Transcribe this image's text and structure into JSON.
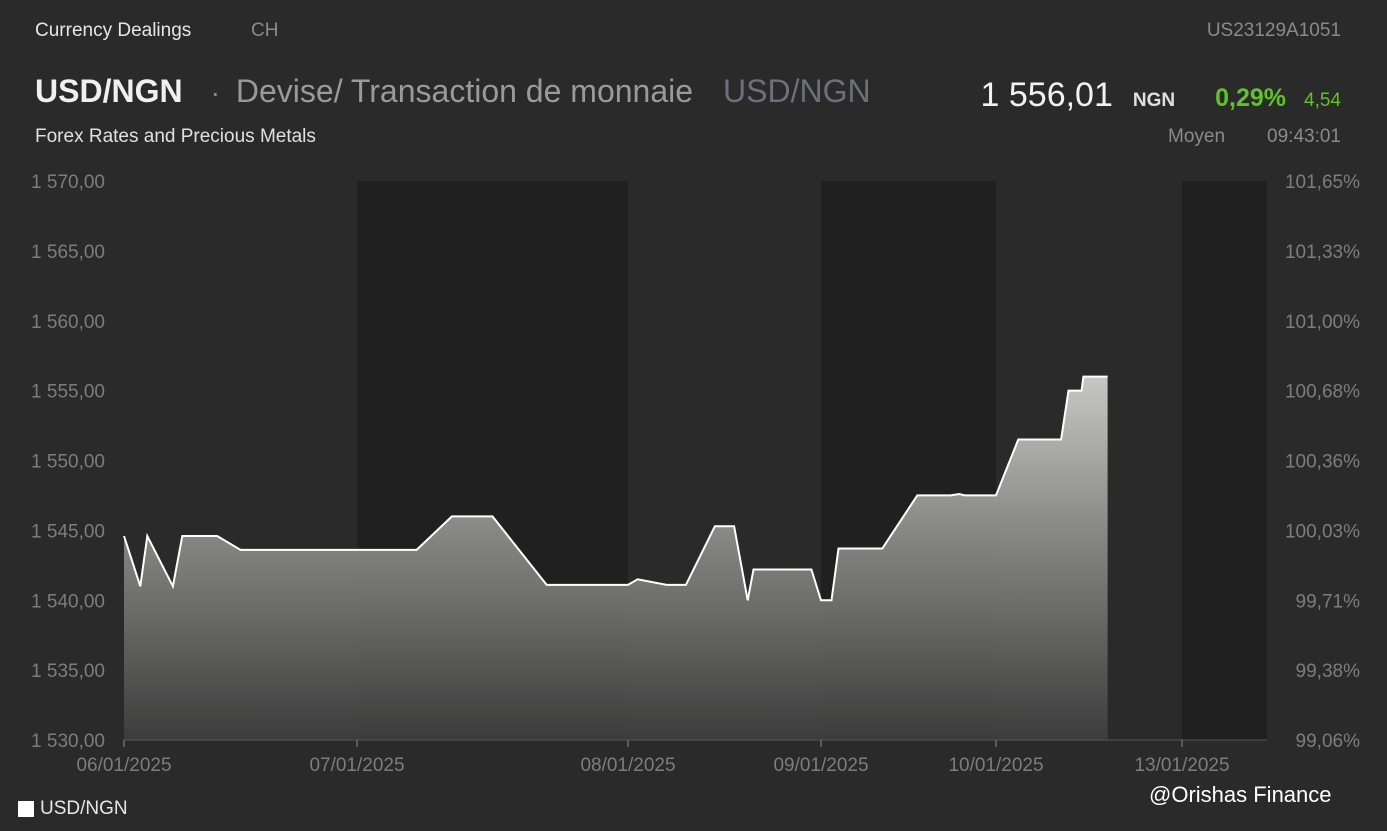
{
  "header": {
    "category": "Currency Dealings",
    "exchange": "CH",
    "isin": "US23129A1051",
    "symbol": "USD/NGN",
    "separator": "·",
    "description": "Devise/ Transaction de monnaie",
    "symbol_secondary": "USD/NGN",
    "price": "1 556,01",
    "currency": "NGN",
    "change_pct": "0,29%",
    "change_abs": "4,54",
    "subtitle": "Forex Rates and Precious Metals",
    "price_type": "Moyen",
    "time": "09:43:01"
  },
  "colors": {
    "background": "#2a2a2a",
    "shaded_band": "#202020",
    "line": "#ffffff",
    "positive": "#5fc22a"
  },
  "legend": {
    "label": "USD/NGN"
  },
  "watermark": "@Orishas Finance",
  "chart_data": {
    "type": "area",
    "series": [
      {
        "name": "USD/NGN",
        "x": [
          0,
          0.1,
          0.25,
          0.4,
          0.5,
          0.6,
          0.75,
          0.9,
          1.0,
          1.08,
          1.22,
          1.35,
          1.5,
          1.7,
          1.9,
          2.0,
          2.05,
          2.2,
          2.3,
          2.45,
          2.55,
          2.62,
          2.65,
          2.68,
          2.7,
          2.82,
          2.9,
          2.95,
          3.0,
          3.06,
          3.1,
          3.35,
          3.55,
          3.65,
          3.74,
          3.79,
          3.82,
          3.89,
          3.93,
          3.95,
          4.0,
          4.12,
          4.35,
          4.39,
          4.46,
          4.47,
          4.6
        ],
        "values": [
          1544.6,
          1544.6,
          1544.6,
          1544.6,
          1543.6,
          1543.6,
          1543.6,
          1543.6,
          1543.6,
          1543.6,
          1543.6,
          1546.0,
          1546.0,
          1541.1,
          1541.1,
          1541.1,
          1541.5,
          1541.1,
          1541.1,
          1545.3,
          1545.3,
          1540.0,
          1542.2,
          1542.2,
          1542.2,
          1542.2,
          1542.2,
          1542.2,
          1540.0,
          1540.0,
          1543.7,
          1543.7,
          1547.5,
          1547.5,
          1547.5,
          1547.6,
          1547.5,
          1547.5,
          1547.5,
          1547.5,
          1547.5,
          1551.5,
          1551.5,
          1555.0,
          1555.0,
          1556.0,
          1556.0
        ]
      }
    ],
    "dip_points": [
      {
        "x": 0.07,
        "value": 1541.0
      },
      {
        "x": 0.21,
        "value": 1541.0
      }
    ],
    "x_ticks": [
      {
        "x": 0,
        "label": "06/01/2025"
      },
      {
        "x": 1,
        "label": "07/01/2025"
      },
      {
        "x": 2,
        "label": "08/01/2025"
      },
      {
        "x": 3,
        "label": "09/01/2025"
      },
      {
        "x": 4,
        "label": "10/01/2025"
      },
      {
        "x": 5,
        "label": "13/01/2025"
      }
    ],
    "x_axis_breaks": [
      {
        "from": 0,
        "to": 1.0,
        "shaded": false
      },
      {
        "from": 1.0,
        "to": 2.0,
        "shaded": true
      },
      {
        "from": 2.0,
        "to": 3.0,
        "shaded": false
      },
      {
        "from": 3.0,
        "to": 4.0,
        "shaded": true
      },
      {
        "from": 4.0,
        "to": 5.0,
        "shaded": false
      },
      {
        "from": 5.0,
        "to": 5.5,
        "shaded": true
      }
    ],
    "y_left_ticks": [
      "1 530,00",
      "1 535,00",
      "1 540,00",
      "1 545,00",
      "1 550,00",
      "1 555,00",
      "1 560,00",
      "1 565,00",
      "1 570,00"
    ],
    "y_left_values": [
      1530,
      1535,
      1540,
      1545,
      1550,
      1555,
      1560,
      1565,
      1570
    ],
    "y_right_ticks": [
      "99,06%",
      "99,38%",
      "99,71%",
      "100,03%",
      "100,36%",
      "100,68%",
      "101,00%",
      "101,33%",
      "101,65%"
    ],
    "ylim": [
      1530,
      1570
    ],
    "grid": false,
    "legend_position": "bottom-left"
  }
}
